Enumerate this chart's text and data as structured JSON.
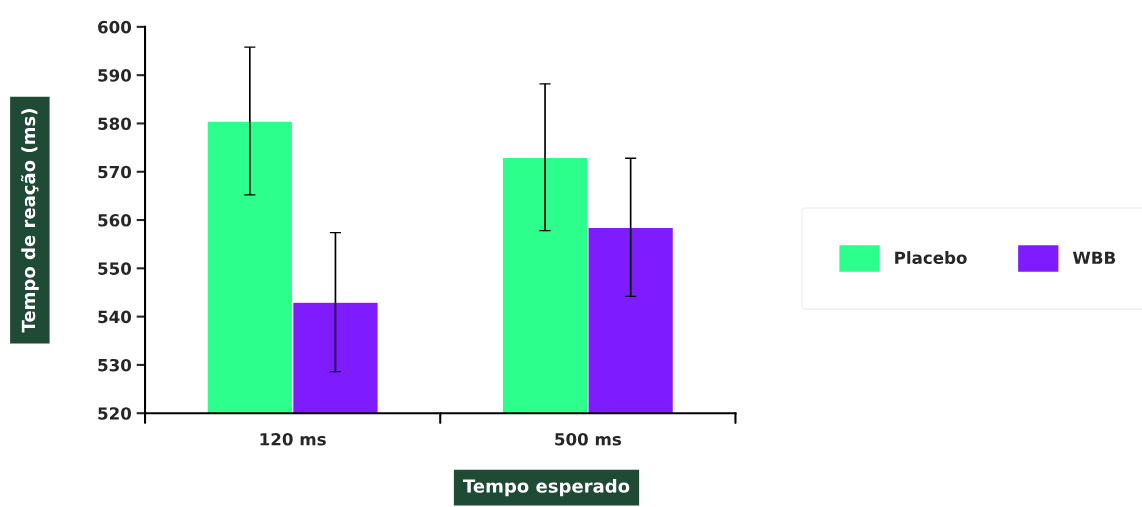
{
  "chart_data": {
    "type": "bar",
    "xlabel": "Tempo esperado",
    "ylabel": "Tempo de reação (ms)",
    "categories": [
      "120 ms",
      "500 ms"
    ],
    "series": [
      {
        "name": "Placebo",
        "color": "#2cff8c",
        "values": [
          580.5,
          573
        ],
        "errors": [
          15.3,
          15.2
        ]
      },
      {
        "name": "WBB",
        "color": "#7f1cff",
        "values": [
          543,
          558.5
        ],
        "errors": [
          14.4,
          14.3
        ]
      }
    ],
    "ylim": [
      520,
      600
    ],
    "yticks": [
      520,
      530,
      540,
      550,
      560,
      570,
      580,
      590,
      600
    ],
    "grid": false,
    "legend": "right"
  }
}
